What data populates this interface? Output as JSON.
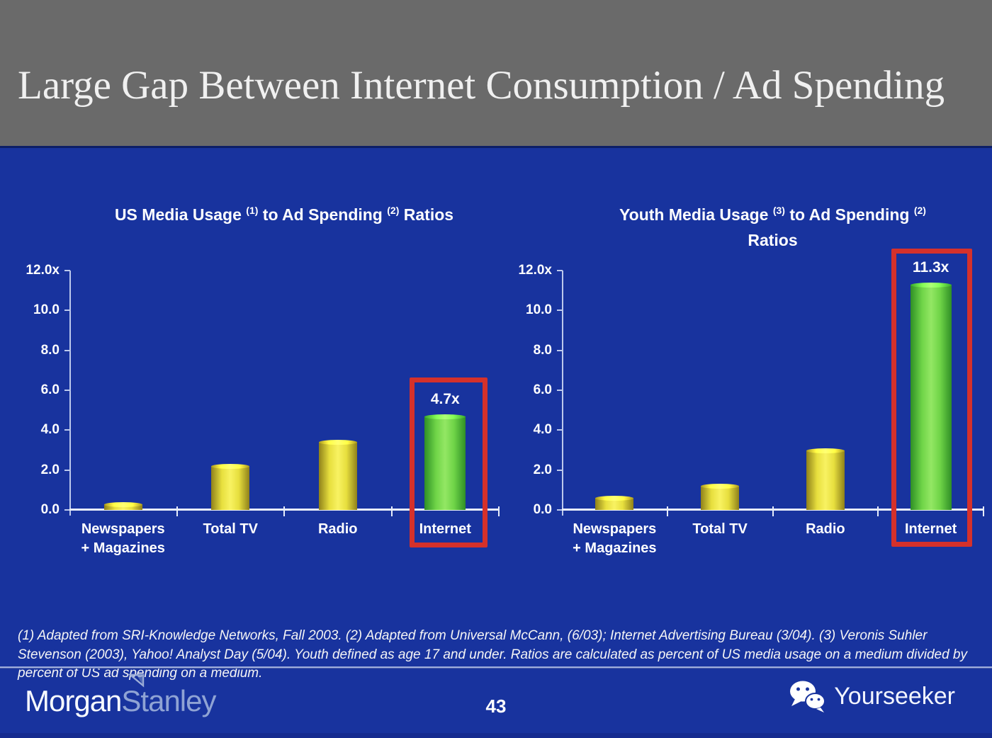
{
  "slide": {
    "title": "Large Gap Between Internet Consumption / Ad Spending"
  },
  "footnote": {
    "text": "(1) Adapted from SRI-Knowledge Networks, Fall 2003.  (2) Adapted from Universal McCann, (6/03); Internet Advertising Bureau (3/04). (3) Veronis Suhler Stevenson (2003), Yahoo! Analyst Day (5/04).  Youth defined as age 17 and under.  Ratios are calculated as percent of US media usage on a medium divided by percent of US ad spending on a medium."
  },
  "footer": {
    "brand": {
      "word1": "Morgan",
      "word2": "Stanley"
    },
    "page_number": "43",
    "right_brand": "Yourseeker",
    "right_brand_icon": "wechat-icon"
  },
  "colors": {
    "header_gray": "#6A6A6A",
    "background_blue": "#18339E",
    "title_text": "#F0F0F0",
    "text_white": "#FFFFFF",
    "axis_line": "#BCC9EC",
    "baseline": "#E8EDFA",
    "highlight_red": "#D5312B",
    "bar_yellow_edge": "#8F811A",
    "bar_yellow_mid": "#E7DF3E",
    "bar_yellow_center": "#F8F262",
    "bar_green_edge": "#2F8F26",
    "bar_green_mid": "#6FD447",
    "bar_green_center": "#93E764",
    "brand_secondary": "#8FA3D4",
    "footer_divider": "#9FAEDC"
  },
  "chart_data": [
    {
      "type": "bar",
      "title_parts": [
        {
          "text": "US Media Usage "
        },
        {
          "sup": "(1)"
        },
        {
          "text": " to Ad Spending "
        },
        {
          "sup": "(2)"
        },
        {
          "text": " Ratios"
        }
      ],
      "title_line2": null,
      "categories": [
        [
          "Newspapers",
          "+ Magazines"
        ],
        [
          "Total TV"
        ],
        [
          "Radio"
        ],
        [
          "Internet"
        ]
      ],
      "values": [
        0.3,
        2.2,
        3.4,
        4.7
      ],
      "bar_styles": [
        "yellow",
        "yellow",
        "yellow",
        "green"
      ],
      "data_labels": [
        null,
        null,
        null,
        "4.7x"
      ],
      "highlight_index": 3,
      "ylim": [
        0,
        12
      ],
      "y_ticks": [
        {
          "value": 12,
          "label": "12.0x"
        },
        {
          "value": 10,
          "label": "10.0"
        },
        {
          "value": 8,
          "label": "8.0"
        },
        {
          "value": 6,
          "label": "6.0"
        },
        {
          "value": 4,
          "label": "4.0"
        },
        {
          "value": 2,
          "label": "2.0"
        },
        {
          "value": 0,
          "label": "0.0"
        }
      ],
      "xlabel": "",
      "ylabel": "",
      "grid": false,
      "legend": null
    },
    {
      "type": "bar",
      "title_parts": [
        {
          "text": "Youth Media Usage "
        },
        {
          "sup": "(3)"
        },
        {
          "text": " to Ad Spending "
        },
        {
          "sup": "(2)"
        }
      ],
      "title_line2": "Ratios",
      "categories": [
        [
          "Newspapers",
          "+ Magazines"
        ],
        [
          "Total TV"
        ],
        [
          "Radio"
        ],
        [
          "Internet"
        ]
      ],
      "values": [
        0.6,
        1.2,
        3.0,
        11.3
      ],
      "bar_styles": [
        "yellow",
        "yellow",
        "yellow",
        "green"
      ],
      "data_labels": [
        null,
        null,
        null,
        "11.3x"
      ],
      "highlight_index": 3,
      "ylim": [
        0,
        12
      ],
      "y_ticks": [
        {
          "value": 12,
          "label": "12.0x"
        },
        {
          "value": 10,
          "label": "10.0"
        },
        {
          "value": 8,
          "label": "8.0"
        },
        {
          "value": 6,
          "label": "6.0"
        },
        {
          "value": 4,
          "label": "4.0"
        },
        {
          "value": 2,
          "label": "2.0"
        },
        {
          "value": 0,
          "label": "0.0"
        }
      ],
      "xlabel": "",
      "ylabel": "",
      "grid": false,
      "legend": null
    }
  ]
}
